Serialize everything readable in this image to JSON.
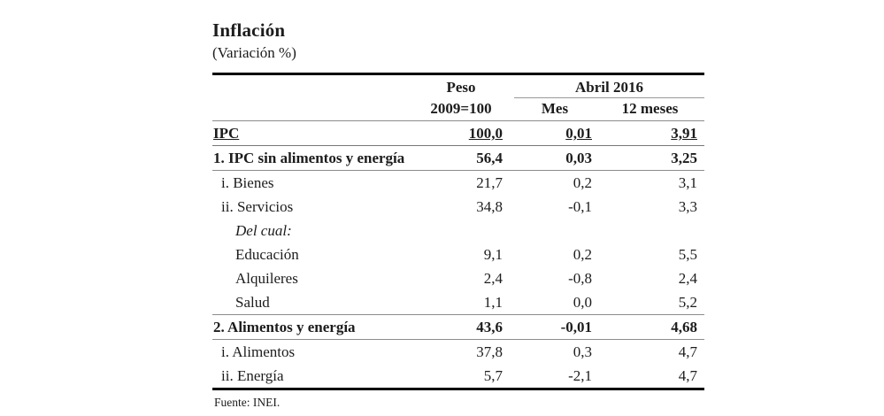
{
  "title": "Inflación",
  "subtitle": "(Variación %)",
  "source": "Fuente: INEI.",
  "colors": {
    "background": "#ffffff",
    "text": "#1c1c1c",
    "thick_rule": "#000000",
    "thin_rule": "#8c8c8c"
  },
  "chart_data": {
    "type": "table",
    "title": "Inflación",
    "subtitle": "(Variación %)",
    "source": "Fuente: INEI.",
    "column_group": {
      "label": "Abril 2016",
      "spans": [
        "Mes",
        "12 meses"
      ]
    },
    "header": {
      "peso_line1": "Peso",
      "peso_line2": "2009=100",
      "group": "Abril 2016",
      "mes": "Mes",
      "meses12": "12 meses"
    },
    "columns": [
      "",
      "Peso 2009=100",
      "Mes",
      "12 meses"
    ],
    "rows": [
      {
        "label": "IPC",
        "peso": "100,0",
        "mes": "0,01",
        "m12": "3,91"
      },
      {
        "label": "1. IPC sin alimentos y energía",
        "peso": "56,4",
        "mes": "0,03",
        "m12": "3,25"
      },
      {
        "label": "i. Bienes",
        "peso": "21,7",
        "mes": "0,2",
        "m12": "3,1"
      },
      {
        "label": "ii. Servicios",
        "peso": "34,8",
        "mes": "-0,1",
        "m12": "3,3"
      },
      {
        "label": "Del cual:",
        "peso": "",
        "mes": "",
        "m12": ""
      },
      {
        "label": "Educación",
        "peso": "9,1",
        "mes": "0,2",
        "m12": "5,5"
      },
      {
        "label": "Alquileres",
        "peso": "2,4",
        "mes": "-0,8",
        "m12": "2,4"
      },
      {
        "label": "Salud",
        "peso": "1,1",
        "mes": "0,0",
        "m12": "5,2"
      },
      {
        "label": "2. Alimentos y energía",
        "peso": "43,6",
        "mes": "-0,01",
        "m12": "4,68"
      },
      {
        "label": "i. Alimentos",
        "peso": "37,8",
        "mes": "0,3",
        "m12": "4,7"
      },
      {
        "label": "ii. Energía",
        "peso": "5,7",
        "mes": "-2,1",
        "m12": "4,7"
      }
    ]
  }
}
